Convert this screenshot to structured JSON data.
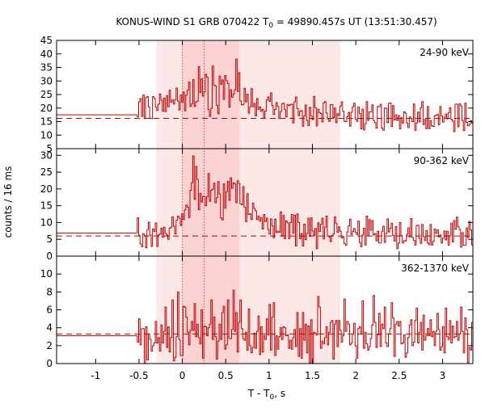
{
  "chart_data": {
    "type": "line",
    "style": "step",
    "title": "KONUS-WIND S1 GRB 070422 T",
    "title_sub": "0",
    "title_rest": " = 49890.457s UT (13:51:30.457)",
    "xlabel": "T - T",
    "xlabel_sub": "0",
    "xlabel_rest": ", s",
    "ylabel": "counts / 16 ms",
    "xlim": [
      -1.45,
      3.35
    ],
    "x_ticks": [
      -1,
      -0.5,
      0,
      0.5,
      1,
      1.5,
      2,
      2.5,
      3
    ],
    "x_tick_labels": [
      "-1",
      "-0.5",
      "0",
      "0.5",
      "1",
      "1.5",
      "2",
      "2.5",
      "3"
    ],
    "bin_width_s": 0.016,
    "shaded_regions": [
      {
        "x0": -0.3,
        "x1": 1.82,
        "color": "#fde8e8"
      },
      {
        "x0": 0.0,
        "x1": 0.66,
        "color": "#fbd3d3"
      }
    ],
    "vertical_markers": [
      0.0,
      0.25
    ],
    "line_color": "#bb0000",
    "panels": [
      {
        "label": "24-90 keV",
        "ylim": [
          5,
          45
        ],
        "y_ticks": [
          5,
          10,
          15,
          20,
          25,
          30,
          35,
          40,
          45
        ],
        "y_tick_labels": [
          "5",
          "10",
          "15",
          "20",
          "25",
          "30",
          "35",
          "40",
          "45"
        ],
        "pre_burst_level": 17.5,
        "background_level": 16.2,
        "segment_start": -0.52,
        "values": [
          16.7,
          22.3,
          23.5,
          16.9,
          24.8,
          16.1,
          23.9,
          24.2,
          20.4,
          16.2,
          16.1,
          24.2,
          23.6,
          20.3,
          19.1,
          21.4,
          25.2,
          22.9,
          18.8,
          23.7,
          18.7,
          24.6,
          20.5,
          26.6,
          22.2,
          23.0,
          21.5,
          23.1,
          27.4,
          22.6,
          19.3,
          24.8,
          22.2,
          25.9,
          19.0,
          24.8,
          26.6,
          29.6,
          20.6,
          21.6,
          30.5,
          20.6,
          22.3,
          22.5,
          35.3,
          25.7,
          30.8,
          24.4,
          26.0,
          32.5,
          31.4,
          19.4,
          16.9,
          19.9,
          35.5,
          28.5,
          28.2,
          21.0,
          17.9,
          31.8,
          28.8,
          30.4,
          23.2,
          32.0,
          30.1,
          29.1,
          20.3,
          26.7,
          24.0,
          25.1,
          26.8,
          38.1,
          26.1,
          33.1,
          22.6,
          21.2,
          21.3,
          27.3,
          22.3,
          25.1,
          18.1,
          20.5,
          27.2,
          20.5,
          21.7,
          17.1,
          23.5,
          19.5,
          20.4,
          18.8,
          19.5,
          16.3,
          18.9,
          23.0,
          24.1,
          22.5,
          25.6,
          20.9,
          17.6,
          19.5,
          22.0,
          20.6,
          16.1,
          18.7,
          21.6,
          21.8,
          19.4,
          16.7,
          21.3,
          20.9,
          21.3,
          21.4,
          14.5,
          22.3,
          24.1,
          19.8,
          17.2,
          18.8,
          19.0,
          13.3,
          17.1,
          21.1,
          15.4,
          13.5,
          20.3,
          17.0,
          15.7,
          24.3,
          20.1,
          13.4,
          19.6,
          18.3,
          18.0,
          14.9,
          21.9,
          22.4,
          18.2,
          16.0,
          15.1,
          21.2,
          21.3,
          16.5,
          20.0,
          14.6,
          17.9,
          17.2,
          20.7,
          22.3,
          18.8,
          15.1,
          15.0,
          16.8,
          18.4,
          13.3,
          18.4,
          20.5,
          21.8,
          15.9,
          15.1,
          20.4,
          18.0,
          12.3,
          19.6,
          11.9,
          14.2,
          22.4,
          15.5,
          18.6,
          18.5,
          21.2,
          15.4,
          14.6,
          12.6,
          20.6,
          20.5,
          21.4,
          12.6,
          11.8,
          20.0,
          19.9,
          14.6,
          21.7,
          21.9,
          13.2,
          20.9,
          15.6,
          17.5,
          15.4,
          17.2,
          12.3,
          16.4,
          14.4,
          18.6,
          18.1,
          14.5,
          12.8,
          16.7,
          16.2,
          15.0,
          21.5,
          11.8,
          14.5,
          18.5,
          14.9,
          20.1,
          22.4,
          13.9,
          15.8,
          12.4,
          20.6,
          12.4,
          15.3,
          13.4,
          13.2,
          17.1,
          17.3,
          17.6,
          13.8,
          20.6,
          17.1,
          14.8,
          16.6,
          17.8,
          16.0,
          18.3,
          20.1,
          15.9,
          15.2,
          11.3,
          21.4,
          21.4,
          13.1,
          21.6,
          20.8,
          15.4,
          11.7,
          21.8,
          14.7,
          13.4,
          13.9,
          15.3,
          14.4,
          21.6,
          22.6,
          19.7,
          18.9,
          21.0,
          14.4,
          21.9,
          15.9,
          22.6,
          18.4,
          15.7,
          15.7,
          21.1,
          21.6,
          17.2,
          17.5,
          19.1,
          21.9,
          14.6,
          21.4,
          13.2,
          20.6,
          22.9,
          14.9,
          19.9,
          18.4,
          15.3,
          17.9,
          15.0,
          12.2,
          11.5,
          19.6,
          18.5,
          15.2,
          20.0,
          21.3,
          11.1
        ]
      },
      {
        "label": "90-362 keV",
        "ylim": [
          0,
          32
        ],
        "y_ticks": [
          0,
          5,
          10,
          15,
          20,
          25,
          30
        ],
        "y_tick_labels": [
          "0",
          "5",
          "10",
          "15",
          "20",
          "25",
          "30"
        ],
        "pre_burst_level": 6.9,
        "background_level": 6.0,
        "segment_start": -0.52,
        "values": [
          11.4,
          6.2,
          3.6,
          2.8,
          6.7,
          6.1,
          2.5,
          7.9,
          10.1,
          6.3,
          2.9,
          8.1,
          7.3,
          9.9,
          2.9,
          6.3,
          6.6,
          8.3,
          5.6,
          8.6,
          6.8,
          6.3,
          5.0,
          8.3,
          8.6,
          11.7,
          8.9,
          6.6,
          10.7,
          11.9,
          11.3,
          9.1,
          12.6,
          10.9,
          13.8,
          15.2,
          14.6,
          11.5,
          19.6,
          21.9,
          29.8,
          16.9,
          26.7,
          22.9,
          13.8,
          18.7,
          16.1,
          17.8,
          17.7,
          15.0,
          17.7,
          24.6,
          16.3,
          19.6,
          19.9,
          21.7,
          15.9,
          17.4,
          22.2,
          18.5,
          11.4,
          10.8,
          21.5,
          14.3,
          19.2,
          22.3,
          16.6,
          23.3,
          20.2,
          21.8,
          21.5,
          15.9,
          22.4,
          21.6,
          15.6,
          15.3,
          20.7,
          14.6,
          10.3,
          18.6,
          12.4,
          12.6,
          10.9,
          15.8,
          14.2,
          13.5,
          10.9,
          11.9,
          10.4,
          11.4,
          8.1,
          12.4,
          10.3,
          11.3,
          7.9,
          6.6,
          11.1,
          9.0,
          5.5,
          11.0,
          7.0,
          7.5,
          7.1,
          13.2,
          6.1,
          12.1,
          5.2,
          10.5,
          9.9,
          5.2,
          10.0,
          12.4,
          6.8,
          12.2,
          3.0,
          12.6,
          10.0,
          5.1,
          6.7,
          3.0,
          9.5,
          4.9,
          6.8,
          11.3,
          5.9,
          11.4,
          7.5,
          6.2,
          8.2,
          2.2,
          9.9,
          7.3,
          9.5,
          11.3,
          5.1,
          8.6,
          11.9,
          6.0,
          5.7,
          4.3,
          6.1,
          6.6,
          11.7,
          9.7,
          7.1,
          8.7,
          7.4,
          5.4,
          5.7,
          3.8,
          3.2,
          7.2,
          9.0,
          11.0,
          6.4,
          7.4,
          8.2,
          7.1,
          6.4,
          10.4,
          4.1,
          2.8,
          6.3,
          8.3,
          3.3,
          11.9,
          6.0,
          10.9,
          7.7,
          10.6,
          6.3,
          6.7,
          4.5,
          7.4,
          3.9,
          3.9,
          7.4,
          8.9,
          4.1,
          6.8,
          11.1,
          7.2,
          8.3,
          9.8,
          6.2,
          4.5,
          8.8,
          2.2,
          3.9,
          10.0,
          6.1,
          3.9,
          4.6,
          4.5,
          6.5,
          8.4,
          5.7,
          11.2,
          5.5,
          4.7,
          3.3,
          9.1,
          9.2,
          5.3,
          3.8,
          9.4,
          5.8,
          4.6,
          7.6,
          3.9,
          3.4,
          9.4,
          3.3,
          4.4,
          8.1,
          6.8,
          7.8,
          5.7,
          6.3,
          3.9,
          5.3,
          7.5,
          4.8,
          7.4,
          3.3,
          6.1,
          9.8,
          4.2,
          10.6,
          8.0,
          11.6,
          8.7,
          7.9,
          2.7,
          7.0,
          3.2,
          3.2,
          8.4,
          5.5,
          10.3,
          7.8,
          3.3,
          7.5,
          8.0,
          8.1,
          6.0,
          11.1,
          4.6,
          3.4,
          10.2,
          9.2,
          3.7,
          5.6,
          5.2,
          3.3,
          3.8,
          11.7,
          7.7,
          9.6,
          3.6,
          5.5,
          8.5,
          8.8,
          6.0,
          8.0,
          2.3
        ]
      },
      {
        "label": "362-1370 keV",
        "ylim": [
          0,
          12
        ],
        "y_ticks": [
          0,
          2,
          4,
          6,
          8,
          10
        ],
        "y_tick_labels": [
          "0",
          "2",
          "4",
          "6",
          "8",
          "10"
        ],
        "pre_burst_level": 3.1,
        "background_level": 3.3,
        "segment_start": -0.52,
        "values": [
          2.4,
          5.0,
          2.1,
          3.9,
          3.9,
          0.0,
          4.1,
          0.4,
          3.3,
          2.7,
          1.4,
          2.0,
          2.3,
          4.7,
          2.3,
          2.9,
          1.4,
          4.3,
          2.3,
          3.6,
          6.3,
          1.8,
          4.1,
          1.3,
          2.9,
          7.1,
          0.3,
          0.7,
          3.0,
          8.0,
          2.7,
          0.9,
          0.9,
          6.4,
          6.3,
          5.2,
          3.5,
          2.1,
          3.7,
          4.7,
          3.7,
          6.7,
          3.0,
          4.4,
          2.9,
          2.2,
          6.0,
          0.6,
          4.2,
          4.1,
          3.1,
          4.0,
          4.4,
          7.1,
          2.7,
          5.2,
          3.0,
          0.5,
          2.5,
          4.4,
          2.7,
          5.7,
          6.4,
          1.6,
          2.1,
          7.1,
          2.8,
          2.8,
          3.8,
          8.2,
          3.6,
          5.7,
          1.3,
          4.6,
          7.1,
          3.9,
          2.8,
          2.6,
          3.5,
          1.5,
          6.1,
          2.0,
          1.2,
          1.8,
          3.4,
          1.7,
          3.6,
          5.3,
          1.0,
          4.1,
          1.3,
          3.1,
          2.7,
          5.0,
          3.2,
          6.6,
          1.5,
          5.2,
          6.8,
          0.9,
          3.1,
          1.6,
          3.0,
          4.0,
          2.7,
          4.1,
          4.0,
          3.1,
          3.2,
          1.7,
          2.6,
          1.6,
          2.9,
          3.8,
          1.9,
          5.7,
          0.8,
          3.9,
          0.6,
          5.7,
          2.6,
          4.4,
          1.2,
          4.2,
          0.1,
          4.9,
          0.1,
          3.5,
          3.4,
          3.2,
          7.5,
          6.3,
          1.7,
          2.5,
          2.2,
          2.9,
          4.1,
          2.1,
          3.5,
          4.6,
          4.8,
          0.5,
          4.4,
          4.8,
          1.9,
          4.8,
          3.7,
          2.4,
          3.1,
          7.2,
          3.6,
          4.7,
          4.4,
          2.1,
          2.3,
          3.3,
          4.5,
          2.0,
          0.6,
          3.9,
          4.1,
          3.3,
          7.0,
          1.7,
          3.5,
          2.2,
          1.5,
          1.9,
          2.8,
          4.3,
          7.6,
          4.6,
          1.8,
          3.2,
          5.6,
          1.9,
          4.4,
          3.9,
          6.3,
          2.3,
          1.9,
          3.3,
          3.9,
          6.8,
          5.1,
          0.8,
          4.4,
          4.7,
          4.2,
          4.7,
          2.2,
          2.3,
          3.2,
          0.7,
          1.2,
          2.9,
          4.3,
          4.9,
          2.0,
          2.4,
          4.8,
          6.2,
          2.3,
          3.5,
          4.6,
          1.5,
          5.4,
          2.6,
          3.1,
          3.9,
          3.1,
          4.9,
          3.0,
          3.6,
          2.0,
          3.6,
          5.6,
          3.8,
          1.5,
          1.9,
          4.1,
          1.2,
          6.2,
          3.0,
          2.7,
          4.8,
          2.3,
          4.2,
          2.9,
          3.0,
          4.7,
          2.6,
          3.3,
          6.3,
          3.6,
          1.2,
          5.1,
          3.8,
          0.1,
          1.8,
          1.5,
          4.6,
          4.1,
          4.2,
          1.7,
          3.2,
          2.9,
          5.5,
          0.4,
          1.7,
          2.7,
          4.9,
          4.3,
          4.1,
          1.1,
          5.5,
          2.9,
          3.5,
          7.5,
          2.8,
          5.2,
          4.9,
          3.0,
          3.5,
          6.7,
          3.1,
          4.9,
          0.3
        ]
      }
    ]
  }
}
